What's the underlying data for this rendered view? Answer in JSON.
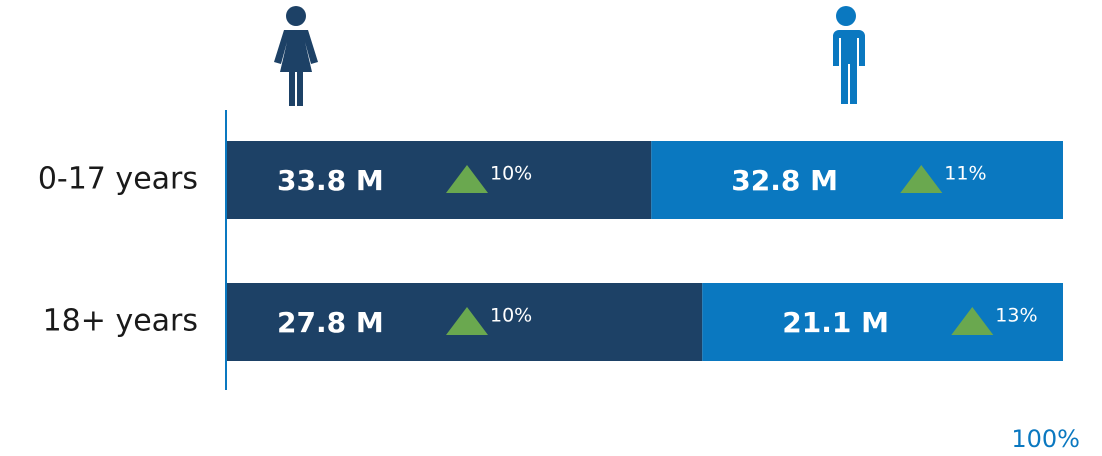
{
  "chart_data": {
    "type": "bar",
    "orientation": "horizontal",
    "stacked": "percent",
    "categories": [
      "0-17 years",
      "18+ years"
    ],
    "series": [
      {
        "color": "#1d4166",
        "values": [
          33.8,
          27.8
        ],
        "value_labels": [
          "33.8 M",
          "27.8 M"
        ],
        "changes": [
          10,
          10
        ],
        "change_labels": [
          "10%",
          "10%"
        ]
      },
      {
        "color": "#0a78c0",
        "values": [
          32.8,
          21.1
        ],
        "value_labels": [
          "32.8 M",
          "21.1 M"
        ],
        "changes": [
          11,
          13
        ],
        "change_labels": [
          "11%",
          "13%"
        ]
      }
    ],
    "change_color": "#6aa84f",
    "xlim": [
      0,
      100
    ],
    "xticks": [
      {
        "value": 100,
        "label": "100%"
      }
    ]
  }
}
